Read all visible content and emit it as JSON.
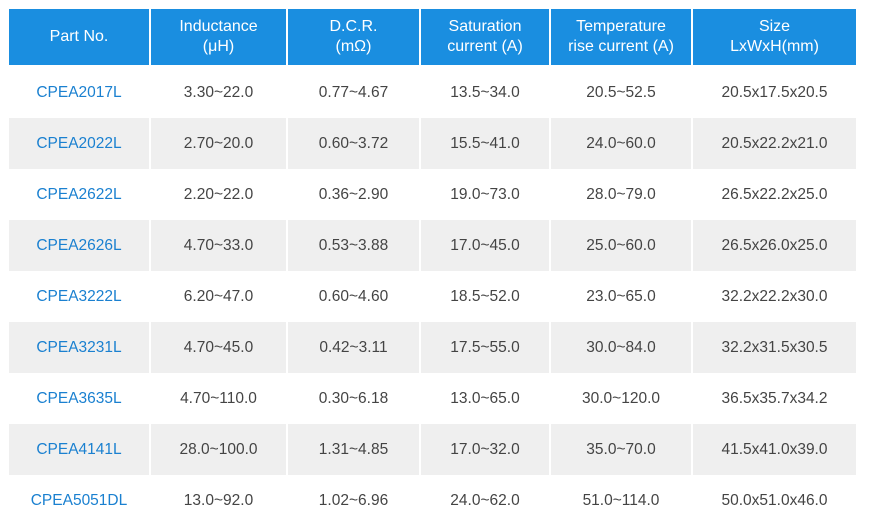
{
  "headers": [
    {
      "line1": "Part No.",
      "line2": ""
    },
    {
      "line1": "Inductance",
      "line2": "(μH)"
    },
    {
      "line1": "D.C.R.",
      "line2": "(mΩ)"
    },
    {
      "line1": "Saturation",
      "line2": "current (A)"
    },
    {
      "line1": "Temperature",
      "line2": "rise current (A)"
    },
    {
      "line1": "Size",
      "line2": "LxWxH(mm)"
    }
  ],
  "rows": [
    {
      "part": "CPEA2017L",
      "inductance": "3.30~22.0",
      "dcr": "0.77~4.67",
      "saturation": "13.5~34.0",
      "temp_rise": "20.5~52.5",
      "size": "20.5x17.5x20.5"
    },
    {
      "part": "CPEA2022L",
      "inductance": "2.70~20.0",
      "dcr": "0.60~3.72",
      "saturation": "15.5~41.0",
      "temp_rise": "24.0~60.0",
      "size": "20.5x22.2x21.0"
    },
    {
      "part": "CPEA2622L",
      "inductance": "2.20~22.0",
      "dcr": "0.36~2.90",
      "saturation": "19.0~73.0",
      "temp_rise": "28.0~79.0",
      "size": "26.5x22.2x25.0"
    },
    {
      "part": "CPEA2626L",
      "inductance": "4.70~33.0",
      "dcr": "0.53~3.88",
      "saturation": "17.0~45.0",
      "temp_rise": "25.0~60.0",
      "size": "26.5x26.0x25.0"
    },
    {
      "part": "CPEA3222L",
      "inductance": "6.20~47.0",
      "dcr": "0.60~4.60",
      "saturation": "18.5~52.0",
      "temp_rise": "23.0~65.0",
      "size": "32.2x22.2x30.0"
    },
    {
      "part": "CPEA3231L",
      "inductance": "4.70~45.0",
      "dcr": "0.42~3.11",
      "saturation": "17.5~55.0",
      "temp_rise": "30.0~84.0",
      "size": "32.2x31.5x30.5"
    },
    {
      "part": "CPEA3635L",
      "inductance": "4.70~110.0",
      "dcr": "0.30~6.18",
      "saturation": "13.0~65.0",
      "temp_rise": "30.0~120.0",
      "size": "36.5x35.7x34.2"
    },
    {
      "part": "CPEA4141L",
      "inductance": "28.0~100.0",
      "dcr": "1.31~4.85",
      "saturation": "17.0~32.0",
      "temp_rise": "35.0~70.0",
      "size": "41.5x41.0x39.0"
    },
    {
      "part": "CPEA5051DL",
      "inductance": "13.0~92.0",
      "dcr": "1.02~6.96",
      "saturation": "24.0~62.0",
      "temp_rise": "51.0~114.0",
      "size": "50.0x51.0x46.0"
    }
  ],
  "colors": {
    "header_bg": "#1a8ee0",
    "header_text": "#ffffff",
    "part_link": "#1a80d0",
    "row_alt_bg": "#efefef",
    "cell_text": "#444444"
  }
}
